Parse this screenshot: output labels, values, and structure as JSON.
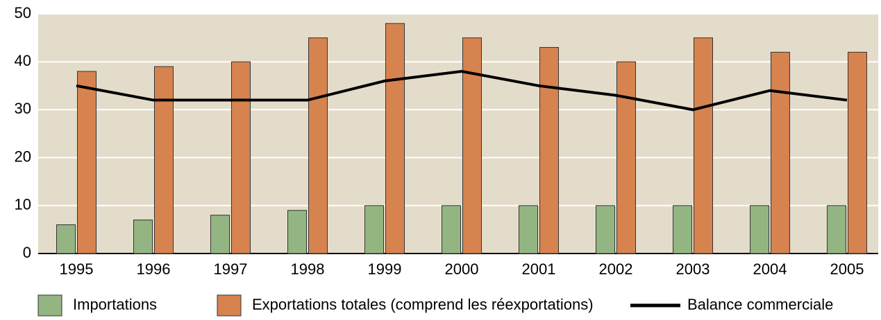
{
  "chart_data": {
    "type": "bar",
    "categories": [
      "1995",
      "1996",
      "1997",
      "1998",
      "1999",
      "2000",
      "2001",
      "2002",
      "2003",
      "2004",
      "2005"
    ],
    "series": [
      {
        "name": "Importations",
        "type": "bar",
        "color": "#93b582",
        "values": [
          6,
          7,
          8,
          9,
          10,
          10,
          10,
          10,
          10,
          10,
          10
        ]
      },
      {
        "name": "Exportations totales (comprend les réexportations)",
        "type": "bar",
        "color": "#d6834f",
        "values": [
          38,
          39,
          40,
          45,
          48,
          45,
          43,
          40,
          45,
          42,
          42
        ]
      },
      {
        "name": "Balance commerciale",
        "type": "line",
        "color": "#000000",
        "values": [
          35,
          32,
          32,
          32,
          36,
          38,
          35,
          33,
          30,
          34,
          32
        ]
      }
    ],
    "ylim": [
      0,
      50
    ],
    "yticks": [
      0,
      10,
      20,
      30,
      40,
      50
    ],
    "grid": true,
    "legend": "bottom"
  }
}
